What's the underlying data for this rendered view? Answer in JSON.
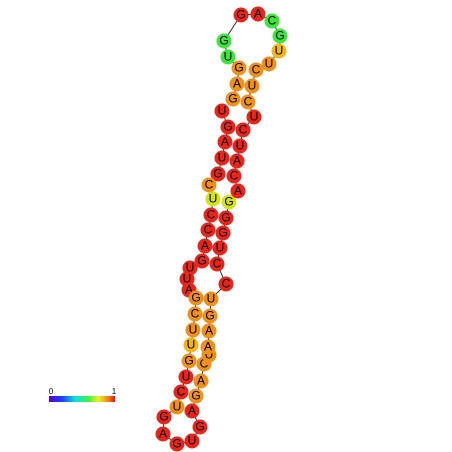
{
  "legend": {
    "min_label": "0",
    "max_label": "1"
  },
  "nodes": [
    {
      "label": "U",
      "color": "#e8251b"
    },
    {
      "label": "G",
      "color": "#e8251b"
    },
    {
      "label": "A",
      "color": "#e8251b"
    },
    {
      "label": "U",
      "color": "#e8251b"
    },
    {
      "label": "G",
      "color": "#e8251b"
    },
    {
      "label": "C",
      "color": "#f0901c"
    },
    {
      "label": "U",
      "color": "#d4e21e"
    },
    {
      "label": "C",
      "color": "#e8251b"
    },
    {
      "label": "C",
      "color": "#e8251b"
    },
    {
      "label": "A",
      "color": "#e8251b"
    },
    {
      "label": "G",
      "color": "#e8251b"
    },
    {
      "label": "U",
      "color": "#e8251b"
    },
    {
      "label": "U",
      "color": "#e8251b"
    },
    {
      "label": "A",
      "color": "#e8251b"
    },
    {
      "label": "G",
      "color": "#f0901c"
    },
    {
      "label": "C",
      "color": "#f0901c"
    },
    {
      "label": "U",
      "color": "#f0901c"
    },
    {
      "label": "U",
      "color": "#f5b41a"
    },
    {
      "label": "G",
      "color": "#f0901c"
    },
    {
      "label": "U",
      "color": "#e8251b"
    },
    {
      "label": "C",
      "color": "#e8251b"
    },
    {
      "label": "U",
      "color": "#f0901c"
    },
    {
      "label": "G",
      "color": "#e8251b"
    },
    {
      "label": "A",
      "color": "#e8251b"
    },
    {
      "label": "G",
      "color": "#e8251b"
    },
    {
      "label": "U",
      "color": "#e8251b"
    },
    {
      "label": "G",
      "color": "#e8251b"
    },
    {
      "label": "A",
      "color": "#e8251b"
    },
    {
      "label": "G",
      "color": "#f0901c"
    },
    {
      "label": "A",
      "color": "#f0901c"
    },
    {
      "label": "C",
      "color": "#f0901c"
    },
    {
      "label": "U",
      "color": "#f0901c"
    },
    {
      "label": "A",
      "color": "#f0901c"
    },
    {
      "label": "A",
      "color": "#f0901c"
    },
    {
      "label": "G",
      "color": "#f0901c"
    },
    {
      "label": "U",
      "color": "#f0901c"
    },
    {
      "label": "C",
      "color": "#e8251b"
    },
    {
      "label": "C",
      "color": "#e8251b"
    },
    {
      "label": "U",
      "color": "#e8251b"
    },
    {
      "label": "G",
      "color": "#e8251b"
    },
    {
      "label": "G",
      "color": "#e8251b"
    },
    {
      "label": "G",
      "color": "#d4e21e"
    },
    {
      "label": "A",
      "color": "#e8251b"
    },
    {
      "label": "C",
      "color": "#e8251b"
    },
    {
      "label": "A",
      "color": "#e8251b"
    },
    {
      "label": "U",
      "color": "#e8251b"
    },
    {
      "label": "C",
      "color": "#e8251b"
    },
    {
      "label": "U",
      "color": "#e8251b"
    },
    {
      "label": "C",
      "color": "#f0901c"
    },
    {
      "label": "U",
      "color": "#f0901c"
    },
    {
      "label": "C",
      "color": "#f0901c"
    },
    {
      "label": "U",
      "color": "#f0901c"
    },
    {
      "label": "U",
      "color": "#f5b41a"
    },
    {
      "label": "G",
      "color": "#3ce43c"
    },
    {
      "label": "C",
      "color": "#3ce43c"
    },
    {
      "label": "A",
      "color": "#e8251b"
    },
    {
      "label": "G",
      "color": "#e8251b"
    },
    {
      "label": "G",
      "color": "#3ce43c"
    },
    {
      "label": "U",
      "color": "#3ce43c"
    },
    {
      "label": "G",
      "color": "#f0901c"
    },
    {
      "label": "A",
      "color": "#f0901c"
    },
    {
      "label": "G",
      "color": "#f0901c"
    }
  ]
}
